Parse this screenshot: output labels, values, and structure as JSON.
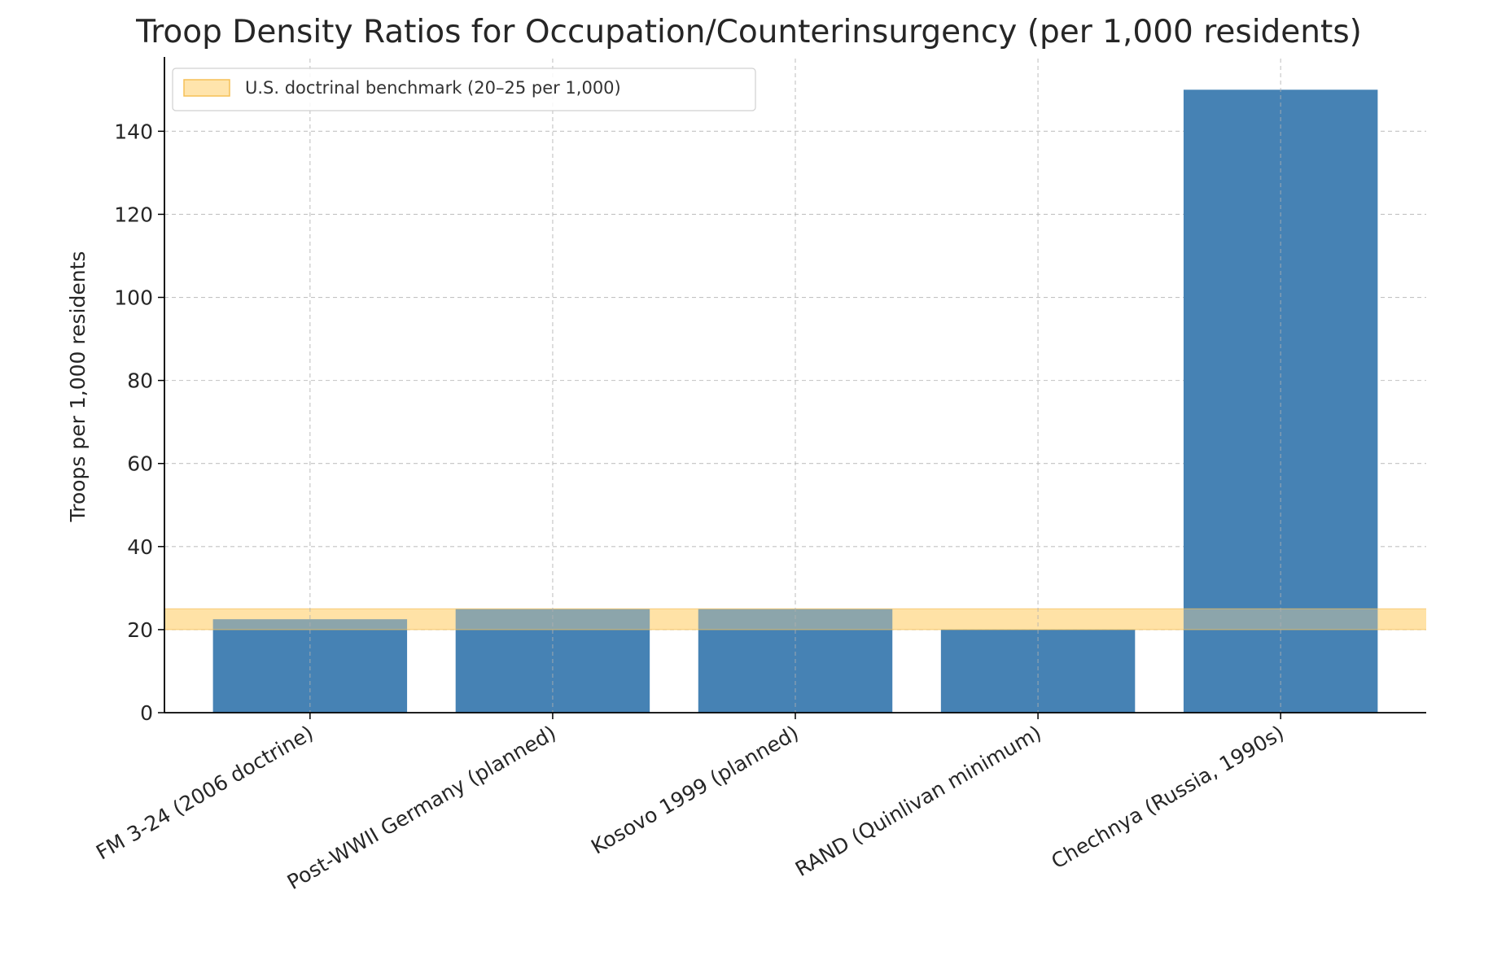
{
  "chart_data": {
    "type": "bar",
    "title": "Troop Density Ratios for Occupation/Counterinsurgency (per 1,000 residents)",
    "xlabel": "",
    "ylabel": "Troops per 1,000 residents",
    "categories": [
      "FM 3-24 (2006 doctrine)",
      "Post-WWII Germany (planned)",
      "Kosovo 1999 (planned)",
      "RAND (Quinlivan minimum)",
      "Chechnya (Russia, 1990s)"
    ],
    "values": [
      22.5,
      25,
      25,
      20,
      150
    ],
    "ylim": [
      0,
      157.5
    ],
    "yticks": [
      0,
      20,
      40,
      60,
      80,
      100,
      120,
      140
    ],
    "grid": true,
    "legend_position": "top-left",
    "benchmark_band": {
      "label": "U.S. doctrinal benchmark (20–25 per 1,000)",
      "from": 20,
      "to": 25
    },
    "colors": {
      "bar": "#4682b4",
      "band": "#ffdf9e",
      "band_edge": "#f5c056",
      "text": "#262626"
    }
  }
}
